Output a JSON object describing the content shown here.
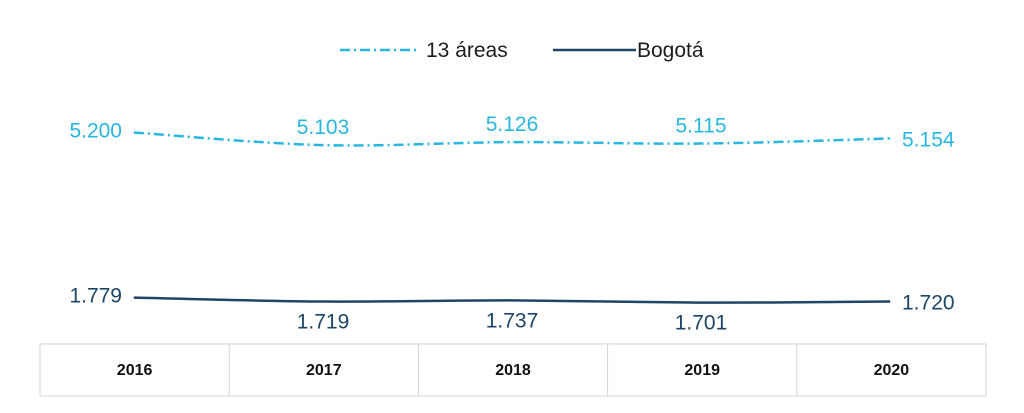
{
  "chart_data": {
    "type": "line",
    "categories": [
      "2016",
      "2017",
      "2018",
      "2019",
      "2020"
    ],
    "series": [
      {
        "name": "13 áreas",
        "values": [
          5.2,
          5.103,
          5.126,
          5.115,
          5.154
        ],
        "labels": [
          "5.200",
          "5.103",
          "5.126",
          "5.115",
          "5.154"
        ],
        "color": "#29b6e0",
        "style": "dash-dot"
      },
      {
        "name": "Bogotá",
        "values": [
          1.779,
          1.719,
          1.737,
          1.701,
          1.72
        ],
        "labels": [
          "1.779",
          "1.719",
          "1.737",
          "1.701",
          "1.720"
        ],
        "color": "#1d4566",
        "style": "solid"
      }
    ],
    "legend_position": "top-center",
    "grid": false
  }
}
